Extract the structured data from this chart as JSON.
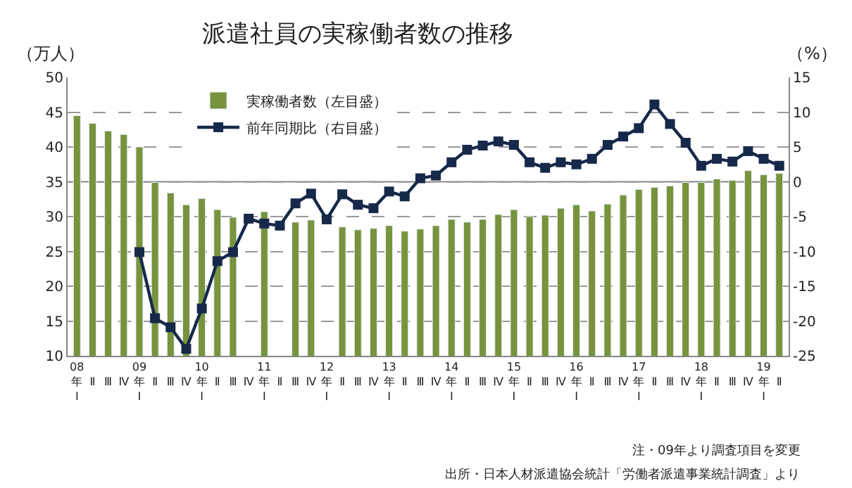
{
  "chart_data": {
    "type": "bar",
    "title": "派遣社員の実稼働者数の推移",
    "ylabel": "（万人）",
    "y2label": "（%）",
    "categories": [
      "08年Ⅰ",
      "Ⅱ",
      "Ⅲ",
      "Ⅳ",
      "09年Ⅰ",
      "Ⅱ",
      "Ⅲ",
      "Ⅳ",
      "10年Ⅰ",
      "Ⅱ",
      "Ⅲ",
      "Ⅳ",
      "11年Ⅰ",
      "Ⅱ",
      "Ⅲ",
      "Ⅳ",
      "12年Ⅰ",
      "Ⅱ",
      "Ⅲ",
      "Ⅳ",
      "13年Ⅰ",
      "Ⅱ",
      "Ⅲ",
      "Ⅳ",
      "14年Ⅰ",
      "Ⅱ",
      "Ⅲ",
      "Ⅳ",
      "15年Ⅰ",
      "Ⅱ",
      "Ⅲ",
      "Ⅳ",
      "16年Ⅰ",
      "Ⅱ",
      "Ⅲ",
      "Ⅳ",
      "17年Ⅰ",
      "Ⅱ",
      "Ⅲ",
      "Ⅳ",
      "18年Ⅰ",
      "Ⅱ",
      "Ⅲ",
      "Ⅳ",
      "19年Ⅰ",
      "Ⅱ"
    ],
    "series": [
      {
        "name": "実稼働者数（左目盛）",
        "color": "#77933c",
        "values": [
          44.5,
          43.4,
          42.3,
          41.8,
          40.0,
          34.9,
          33.4,
          31.7,
          32.6,
          31.0,
          29.9,
          null,
          30.7,
          null,
          29.2,
          29.5,
          null,
          28.5,
          28.1,
          28.3,
          28.7,
          27.9,
          28.2,
          28.7,
          29.6,
          29.2,
          29.6,
          30.3,
          31.0,
          30.0,
          30.2,
          31.2,
          31.7,
          30.8,
          31.8,
          33.1,
          33.9,
          34.2,
          34.4,
          34.9,
          34.9,
          35.4,
          35.2,
          36.6,
          36.0,
          36.2
        ]
      },
      {
        "name": "前年同期比（右目盛）",
        "type": "line",
        "axis": "y2",
        "color": "#17294a",
        "marker": "square",
        "line_style": "solid",
        "values": [
          null,
          null,
          null,
          null,
          -10.1,
          -19.6,
          -20.9,
          -24.0,
          -18.2,
          -11.4,
          -10.1,
          -5.3,
          -6.0,
          -6.3,
          -3.1,
          -1.7,
          -5.4,
          -1.8,
          -3.3,
          -3.8,
          -1.4,
          -2.1,
          0.5,
          0.9,
          2.8,
          4.6,
          5.2,
          5.8,
          5.3,
          2.8,
          2.0,
          2.8,
          2.5,
          3.3,
          5.3,
          6.5,
          7.7,
          11.1,
          8.3,
          5.6,
          2.3,
          3.3,
          2.9,
          4.4,
          3.3,
          2.3
        ]
      }
    ],
    "ylim": [
      10,
      50
    ],
    "yticks": [
      10,
      15,
      20,
      25,
      30,
      35,
      40,
      45,
      50
    ],
    "y2lim": [
      -25,
      15
    ],
    "y2ticks": [
      -25,
      -20,
      -15,
      -10,
      -5,
      0,
      5,
      10,
      15
    ],
    "grid": "y",
    "legend": "top",
    "ref_lines": [
      {
        "axis": "y2",
        "value": 0,
        "color": "#888888",
        "line_style": "solid"
      }
    ],
    "annotations": [
      "注・09年より調査項目を変更",
      "出所・日本人材派遣協会統計「労働者派遣事業統計調査」より"
    ]
  }
}
